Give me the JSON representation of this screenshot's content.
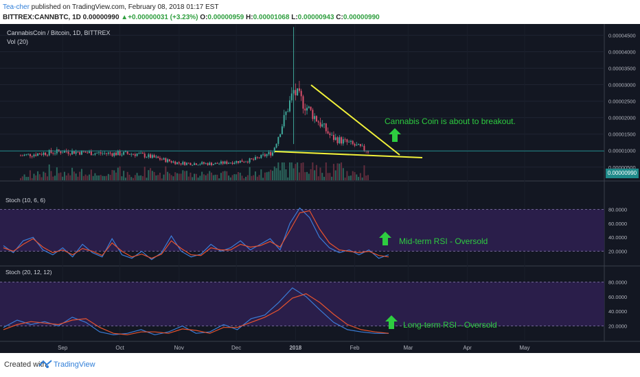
{
  "header": {
    "author": "Tea-cher",
    "published": " published on TradingView.com, February 08, 2018 01:17 EST",
    "symbol": "BITTREX:CANNBTC, 1D",
    "last": "0.00000990",
    "change": "+0.00000031 (+3.23%)",
    "open_label": "O:",
    "open": "0.00000959",
    "high_label": "H:",
    "high": "0.00001068",
    "low_label": "L:",
    "low": "0.00000943",
    "close_label": "C:",
    "close": "0.00000990"
  },
  "main_pane": {
    "title": "CannabisCoin / Bitcoin, 1D, BITTREX",
    "vol_label": "Vol (20)",
    "price_tag": "0.00000990",
    "annotation": "Cannabis Coin is about to breakout."
  },
  "stoch1": {
    "title": "Stoch (10, 6, 6)",
    "annotation": "Mid-term RSI - Oversold"
  },
  "stoch2": {
    "title": "Stoch (20, 12, 12)",
    "annotation": "Long-term RSI - Oversold"
  },
  "footer": {
    "created": "Created with",
    "brand": "TradingView"
  },
  "colors": {
    "background": "#131722",
    "stoch_band": "#2a1e4a",
    "k_line": "#3b7dd8",
    "d_line": "#e8532e",
    "trendline": "#f2f23a",
    "annotation": "#2ecc40",
    "up_candle": "#3fa89a",
    "down_candle": "#d94f6a"
  },
  "chart_data": [
    {
      "type": "candlestick",
      "title": "CannabisCoin / Bitcoin, 1D, BITTREX",
      "x_ticks": [
        "Sep",
        "Oct",
        "Nov",
        "Dec",
        "2018",
        "Feb",
        "Mar",
        "Apr",
        "May"
      ],
      "y_ticks": [
        "0.00000500",
        "0.00001000",
        "0.00001500",
        "0.00002000",
        "0.00002500",
        "0.00003000",
        "0.00003500",
        "0.00004000",
        "0.00004500"
      ],
      "ylim": [
        1e-06,
        4.8e-05
      ],
      "last_price": 9.9e-06,
      "approx_close": [
        {
          "date": "2017-08-10",
          "close": 8.5e-06
        },
        {
          "date": "2017-09-01",
          "close": 9.8e-06
        },
        {
          "date": "2017-09-20",
          "close": 9.2e-06
        },
        {
          "date": "2017-10-10",
          "close": 9e-06
        },
        {
          "date": "2017-11-01",
          "close": 6.2e-06
        },
        {
          "date": "2017-11-20",
          "close": 6e-06
        },
        {
          "date": "2017-12-10",
          "close": 7.2e-06
        },
        {
          "date": "2017-12-20",
          "close": 9.5e-06
        },
        {
          "date": "2017-12-31",
          "close": 2.8e-05
        },
        {
          "date": "2018-01-10",
          "close": 2.1e-05
        },
        {
          "date": "2018-01-20",
          "close": 1.4e-05
        },
        {
          "date": "2018-01-30",
          "close": 1.2e-05
        },
        {
          "date": "2018-02-08",
          "close": 9.9e-06
        }
      ],
      "spike_high": {
        "date": "2017-12-31",
        "high": 4.75e-05
      },
      "annotations": [
        "Cannabis Coin is about to breakout."
      ]
    },
    {
      "type": "line",
      "title": "Stoch (10, 6, 6)",
      "y_ticks": [
        "20.0000",
        "40.0000",
        "60.0000",
        "80.0000"
      ],
      "ylim": [
        0,
        100
      ],
      "bands": [
        20,
        80
      ],
      "series": [
        {
          "values": [
            28,
            18,
            35,
            40,
            22,
            15,
            25,
            12,
            30,
            18,
            12,
            38,
            15,
            10,
            20,
            8,
            18,
            42,
            20,
            12,
            16,
            30,
            20,
            25,
            35,
            22,
            30,
            38,
            22,
            60,
            82,
            68,
            40,
            25,
            18,
            22,
            15,
            22,
            10,
            15
          ]
        },
        {
          "values": [
            25,
            20,
            30,
            38,
            26,
            18,
            22,
            15,
            24,
            20,
            14,
            32,
            20,
            12,
            16,
            10,
            16,
            35,
            24,
            15,
            14,
            25,
            22,
            22,
            30,
            26,
            28,
            34,
            26,
            50,
            75,
            78,
            52,
            32,
            22,
            20,
            18,
            20,
            14,
            12
          ]
        }
      ],
      "annotations": [
        "Mid-term RSI - Oversold"
      ]
    },
    {
      "type": "line",
      "title": "Stoch (20, 12, 12)",
      "y_ticks": [
        "20.0000",
        "40.0000",
        "60.0000",
        "80.0000"
      ],
      "ylim": [
        0,
        100
      ],
      "bands": [
        20,
        80
      ],
      "series": [
        {
          "values": [
            18,
            28,
            22,
            26,
            20,
            32,
            25,
            12,
            8,
            10,
            15,
            8,
            12,
            20,
            10,
            12,
            22,
            15,
            30,
            35,
            52,
            72,
            60,
            42,
            25,
            15,
            12,
            10,
            10
          ]
        },
        {
          "values": [
            15,
            22,
            26,
            24,
            22,
            28,
            30,
            18,
            10,
            8,
            12,
            12,
            10,
            16,
            14,
            10,
            18,
            18,
            25,
            32,
            42,
            58,
            64,
            52,
            36,
            22,
            15,
            12,
            10
          ]
        }
      ],
      "annotations": [
        "Long-term RSI - Oversold"
      ]
    }
  ]
}
